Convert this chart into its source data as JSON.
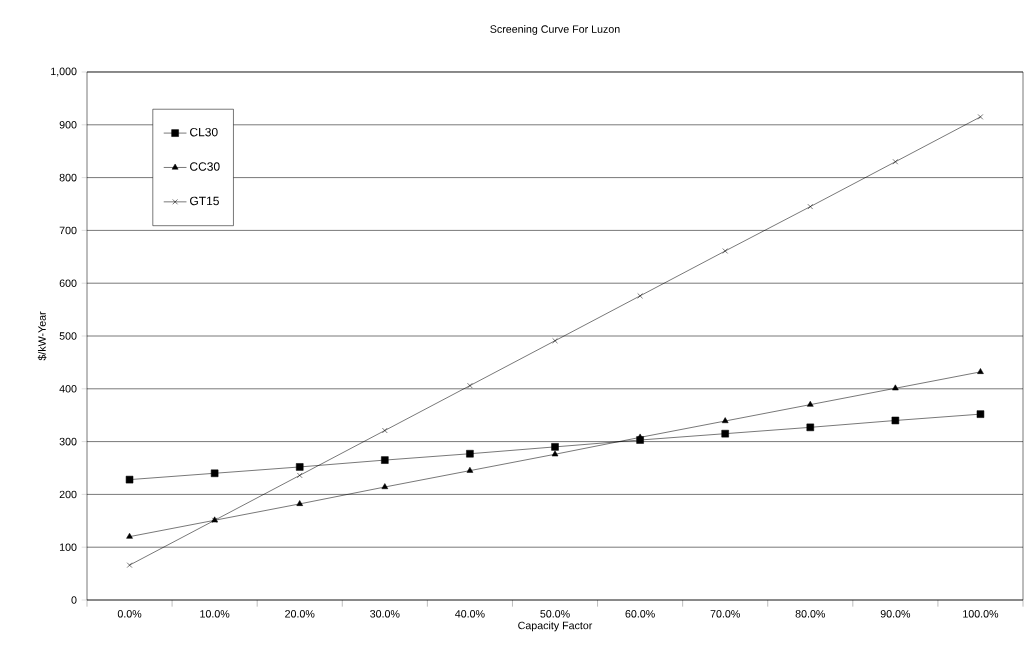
{
  "chart_data": {
    "type": "line",
    "title": "Screening Curve For Luzon",
    "xlabel": "Capacity Factor",
    "ylabel": "$/kW-Year",
    "categories": [
      "0.0%",
      "10.0%",
      "20.0%",
      "30.0%",
      "40.0%",
      "50.0%",
      "60.0%",
      "70.0%",
      "80.0%",
      "90.0%",
      "100.0%"
    ],
    "series": [
      {
        "name": "CL30",
        "color": "#000000",
        "marker": "square",
        "values": [
          228,
          240,
          252,
          265,
          277,
          290,
          303,
          315,
          327,
          340,
          352
        ]
      },
      {
        "name": "CC30",
        "color": "#000000",
        "marker": "triangle",
        "values": [
          120,
          151,
          182,
          214,
          245,
          276,
          308,
          339,
          370,
          401,
          432
        ]
      },
      {
        "name": "GT15",
        "color": "#000000",
        "marker": "cross",
        "values": [
          66,
          151,
          236,
          321,
          406,
          491,
          576,
          661,
          745,
          830,
          915
        ]
      }
    ],
    "ylim": [
      0,
      1000
    ],
    "yticks": [
      0,
      100,
      200,
      300,
      400,
      500,
      600,
      700,
      800,
      900,
      {
        "value": 1000,
        "label": "1,000"
      }
    ],
    "grid": "y",
    "legend": "top left",
    "line_style": "solid"
  }
}
